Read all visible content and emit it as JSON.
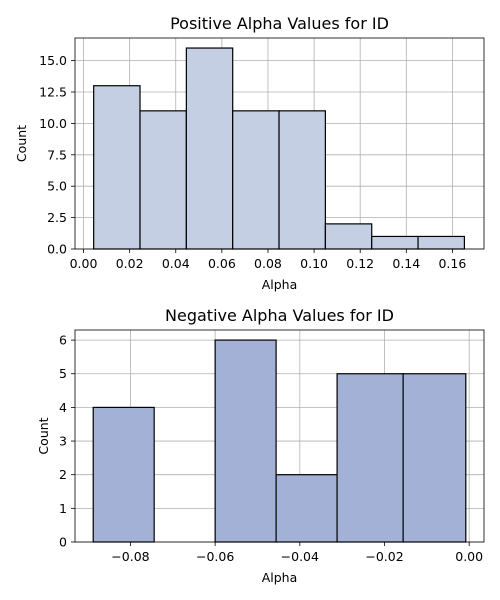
{
  "chart_data": [
    {
      "type": "bar",
      "title": "Positive Alpha Values for ID",
      "xlabel": "Alpha",
      "ylabel": "Count",
      "color": "#c5cfe3",
      "xlim": [
        -0.0037,
        0.1737
      ],
      "ylim": [
        0,
        16.8
      ],
      "xticks": [
        0.0,
        0.02,
        0.04,
        0.06,
        0.08,
        0.1,
        0.12,
        0.14,
        0.16
      ],
      "xtick_labels": [
        "0.00",
        "0.02",
        "0.04",
        "0.06",
        "0.08",
        "0.10",
        "0.12",
        "0.14",
        "0.16"
      ],
      "yticks": [
        0,
        2.5,
        5,
        7.5,
        10,
        12.5,
        15
      ],
      "ytick_labels": [
        "0.0",
        "2.5",
        "5.0",
        "7.5",
        "10.0",
        "12.5",
        "15.0"
      ],
      "grid": true,
      "bins": [
        {
          "x0": 0.0044,
          "x1": 0.0245,
          "count": 13
        },
        {
          "x0": 0.0245,
          "x1": 0.0446,
          "count": 11
        },
        {
          "x0": 0.0446,
          "x1": 0.0647,
          "count": 16
        },
        {
          "x0": 0.0647,
          "x1": 0.0848,
          "count": 11
        },
        {
          "x0": 0.0848,
          "x1": 0.1049,
          "count": 11
        },
        {
          "x0": 0.1049,
          "x1": 0.125,
          "count": 2
        },
        {
          "x0": 0.125,
          "x1": 0.1451,
          "count": 1
        },
        {
          "x0": 0.1451,
          "x1": 0.1652,
          "count": 1
        }
      ]
    },
    {
      "type": "bar",
      "title": "Negative Alpha Values for ID",
      "xlabel": "Alpha",
      "ylabel": "Count",
      "color": "#a3b1d6",
      "xlim": [
        -0.0931,
        0.0035
      ],
      "ylim": [
        0,
        6.3
      ],
      "xticks": [
        -0.08,
        -0.06,
        -0.04,
        -0.02,
        0.0
      ],
      "xtick_labels": [
        "−0.08",
        "−0.06",
        "−0.04",
        "−0.02",
        "0.00"
      ],
      "yticks": [
        0,
        1,
        2,
        3,
        4,
        5,
        6
      ],
      "ytick_labels": [
        "0",
        "1",
        "2",
        "3",
        "4",
        "5",
        "6"
      ],
      "grid": true,
      "bins": [
        {
          "x0": -0.0888,
          "x1": -0.0744,
          "count": 4
        },
        {
          "x0": -0.0744,
          "x1": -0.06,
          "count": 0
        },
        {
          "x0": -0.06,
          "x1": -0.0456,
          "count": 6
        },
        {
          "x0": -0.0456,
          "x1": -0.0312,
          "count": 2
        },
        {
          "x0": -0.0312,
          "x1": -0.0156,
          "count": 5
        },
        {
          "x0": -0.0156,
          "x1": -0.0008,
          "count": 5
        }
      ]
    }
  ]
}
